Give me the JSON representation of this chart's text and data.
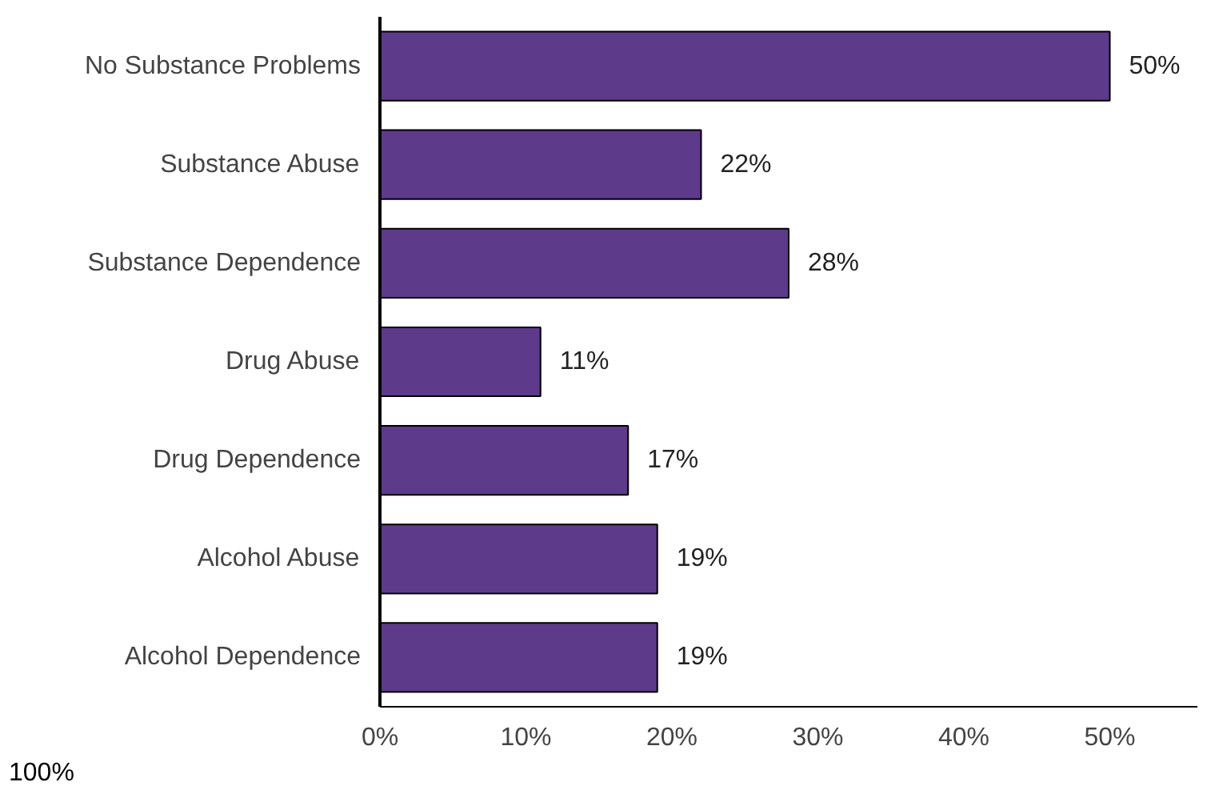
{
  "chart_data": {
    "type": "bar",
    "orientation": "horizontal",
    "categories": [
      "No Substance Problems",
      "Substance Abuse",
      "Substance Dependence",
      "Drug Abuse",
      "Drug Dependence",
      "Alcohol Abuse",
      "Alcohol Dependence"
    ],
    "values": [
      50,
      22,
      28,
      11,
      17,
      19,
      19
    ],
    "value_labels": [
      "50%",
      "22%",
      "28%",
      "11%",
      "17%",
      "19%",
      "19%"
    ],
    "color": "#5e3a8a",
    "xlim": [
      0,
      56
    ],
    "xticks": [
      {
        "value": 0,
        "label": "0%"
      },
      {
        "value": 10,
        "label": "10%"
      },
      {
        "value": 20,
        "label": "20%"
      },
      {
        "value": 30,
        "label": "30%"
      },
      {
        "value": 40,
        "label": "40%"
      },
      {
        "value": 50,
        "label": "50%"
      }
    ],
    "grid": false,
    "annotations": [
      "100%"
    ]
  }
}
